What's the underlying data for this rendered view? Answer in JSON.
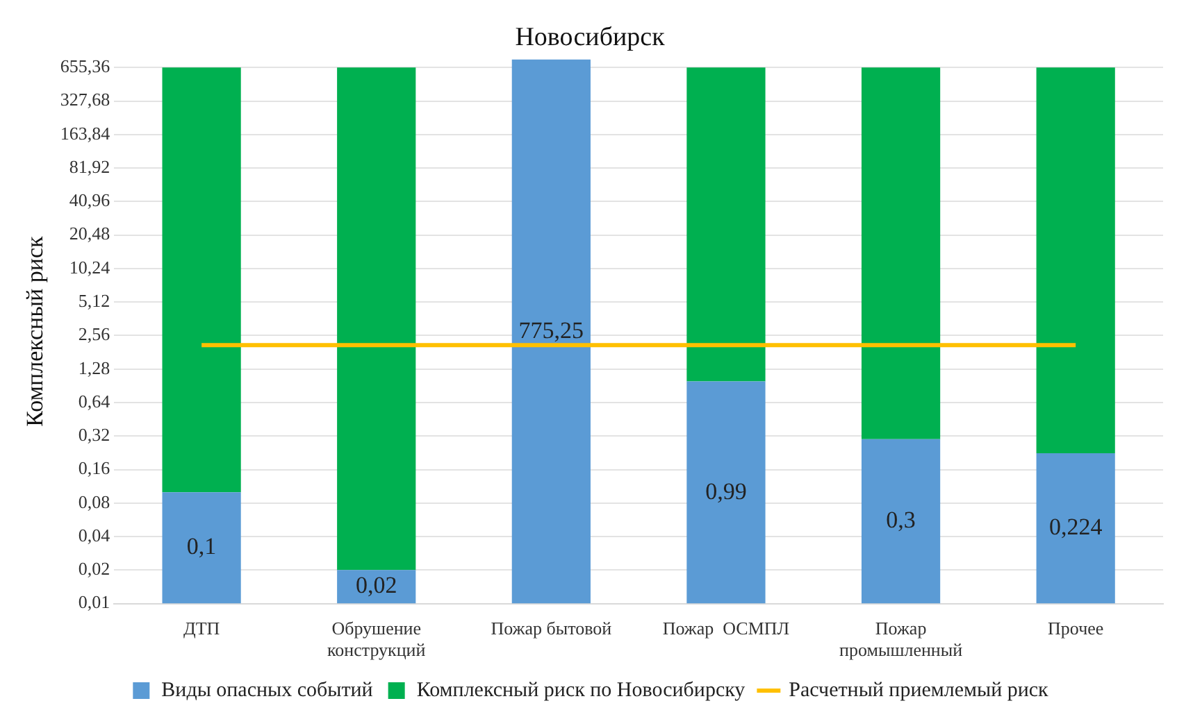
{
  "chart_data": {
    "type": "bar",
    "title": "Новосибирск",
    "ylabel": "Комплексный риск",
    "stacked": true,
    "log": "y",
    "grid": "y",
    "legend": "bottom",
    "categories": [
      "ДТП",
      "Обрушение конструкций",
      "Пожар бытовой",
      "Пожар  ОСМПЛ",
      "Пожар промышленный",
      "Прочее"
    ],
    "series": [
      {
        "name": "Виды опасных событий",
        "color": "#5b9bd5",
        "values": [
          0.1,
          0.02,
          775.25,
          0.99,
          0.3,
          0.224
        ],
        "value_labels": [
          "0,1",
          "0,02",
          "775,25",
          "0,99",
          "0,3",
          "0,224"
        ]
      },
      {
        "name": "Комплексный риск по Новосибирску",
        "color": "#00b050",
        "values": [
          655.26,
          655.34,
          null,
          654.37,
          655.06,
          655.136
        ]
      },
      {
        "name": "Расчетный приемлемый риск",
        "type": "line",
        "color": "#ffc000",
        "values": [
          2.1,
          2.1,
          2.1,
          2.1,
          2.1,
          2.1
        ]
      }
    ],
    "ylim": [
      0.01,
      775.25
    ],
    "yticks": [
      {
        "value": 0.01,
        "label": "0,01"
      },
      {
        "value": 0.02,
        "label": "0,02"
      },
      {
        "value": 0.04,
        "label": "0,04"
      },
      {
        "value": 0.08,
        "label": "0,08"
      },
      {
        "value": 0.16,
        "label": "0,16"
      },
      {
        "value": 0.32,
        "label": "0,32"
      },
      {
        "value": 0.64,
        "label": "0,64"
      },
      {
        "value": 1.28,
        "label": "1,28"
      },
      {
        "value": 2.56,
        "label": "2,56"
      },
      {
        "value": 5.12,
        "label": "5,12"
      },
      {
        "value": 10.24,
        "label": "10,24"
      },
      {
        "value": 20.48,
        "label": "20,48"
      },
      {
        "value": 40.96,
        "label": "40,96"
      },
      {
        "value": 81.92,
        "label": "81,92"
      },
      {
        "value": 163.84,
        "label": "163,84"
      },
      {
        "value": 327.68,
        "label": "327,68"
      },
      {
        "value": 655.36,
        "label": "655,36"
      }
    ]
  }
}
